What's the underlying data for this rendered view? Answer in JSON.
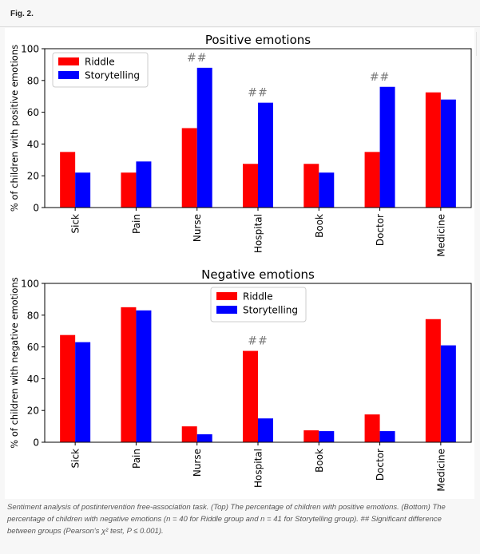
{
  "figure_label": "Fig. 2.",
  "caption": "Sentiment analysis of postintervention free-association task. (Top) The percentage of children with positive emotions. (Bottom) The percentage of children with negative emotions (n = 40 for Riddle group and n = 41 for Storytelling group). ## Significant difference between groups (Pearson's χ² test, P ≤ 0.001).",
  "colors": {
    "riddle": "#ff0000",
    "storytelling": "#0000ff"
  },
  "chart_data": [
    {
      "type": "bar",
      "title": "Positive emotions",
      "xlabel": "",
      "ylabel": "% of children with positive emotions",
      "ylim": [
        0,
        100
      ],
      "yticks": [
        0,
        20,
        40,
        60,
        80,
        100
      ],
      "categories": [
        "Sick",
        "Pain",
        "Nurse",
        "Hospital",
        "Book",
        "Doctor",
        "Medicine"
      ],
      "series": [
        {
          "name": "Riddle",
          "values": [
            35,
            22,
            50,
            27.5,
            27.5,
            35,
            72.5
          ]
        },
        {
          "name": "Storytelling",
          "values": [
            22,
            29,
            88,
            66,
            22,
            76,
            68
          ]
        }
      ],
      "legend": "top-left",
      "annotations": [
        {
          "category": "Nurse",
          "text": "##"
        },
        {
          "category": "Hospital",
          "text": "##"
        },
        {
          "category": "Doctor",
          "text": "##"
        }
      ]
    },
    {
      "type": "bar",
      "title": "Negative emotions",
      "xlabel": "",
      "ylabel": "% of children with negative emotions",
      "ylim": [
        0,
        100
      ],
      "yticks": [
        0,
        20,
        40,
        60,
        80,
        100
      ],
      "categories": [
        "Sick",
        "Pain",
        "Nurse",
        "Hospital",
        "Book",
        "Doctor",
        "Medicine"
      ],
      "series": [
        {
          "name": "Riddle",
          "values": [
            67.5,
            85,
            10,
            57.5,
            7.5,
            17.5,
            77.5
          ]
        },
        {
          "name": "Storytelling",
          "values": [
            63,
            83,
            5,
            15,
            7,
            7,
            61
          ]
        }
      ],
      "legend": "top-center",
      "annotations": [
        {
          "category": "Hospital",
          "text": "##"
        }
      ]
    }
  ]
}
